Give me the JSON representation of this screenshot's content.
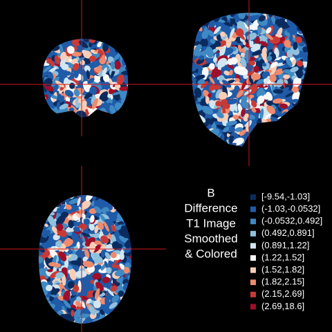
{
  "title_lines": [
    "B",
    "Difference",
    "T1 Image",
    "Smoothed",
    "& Colored"
  ],
  "legend": [
    {
      "label": "[-9.54,-1.03]",
      "color": "#0b2b5e"
    },
    {
      "label": "(-1.03,-0.0532]",
      "color": "#1f5ba8"
    },
    {
      "label": "(-0.0532,0.492]",
      "color": "#3f8ac4"
    },
    {
      "label": "(0.492,0.891]",
      "color": "#8fc1dd"
    },
    {
      "label": "(0.891,1.22]",
      "color": "#d2e6f1"
    },
    {
      "label": "(1.22,1.52]",
      "color": "#f8f8f8"
    },
    {
      "label": "(1.52,1.82]",
      "color": "#f9cdb5"
    },
    {
      "label": "(1.82,2.15]",
      "color": "#ef8a6c"
    },
    {
      "label": "(2.15,2.69]",
      "color": "#c93a36"
    },
    {
      "label": "(2.69,18.6]",
      "color": "#9e0f2a"
    }
  ]
}
